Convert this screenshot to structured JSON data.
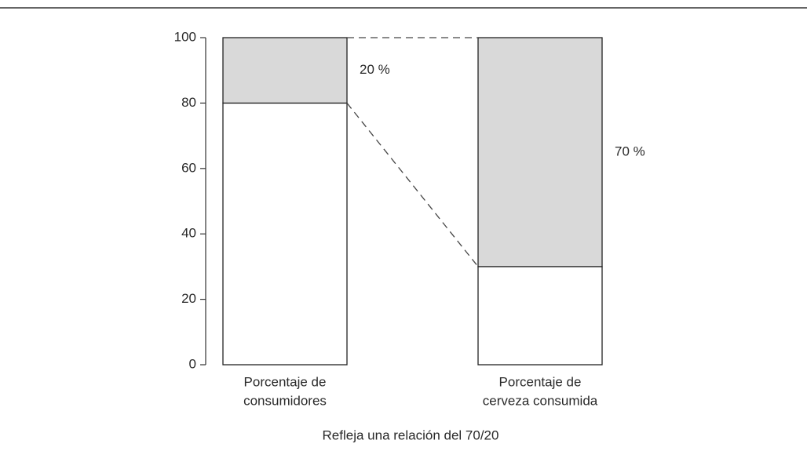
{
  "chart_data": {
    "type": "stacked-bar",
    "categories": [
      [
        "Porcentaje de",
        "consumidores"
      ],
      [
        "Porcentaje de",
        "cerveza consumida"
      ]
    ],
    "series": [
      {
        "color": "#ffffff",
        "values": [
          80,
          30
        ]
      },
      {
        "color": "#d9d9d9",
        "values": [
          20,
          70
        ],
        "value_labels": [
          "20 %",
          "70 %"
        ]
      }
    ],
    "ylim": [
      0,
      100
    ],
    "yticks": [
      0,
      20,
      40,
      60,
      80,
      100
    ],
    "caption": "Refleja una relación del 70/20"
  }
}
